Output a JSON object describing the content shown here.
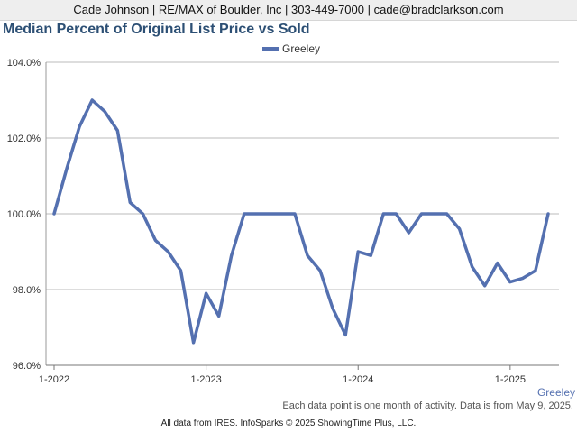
{
  "header": {
    "contact": "Cade Johnson | RE/MAX of Boulder, Inc | 303-449-7000 | cade@bradclarkson.com"
  },
  "colors": {
    "series": "#5470b0",
    "title": "#2c4f74",
    "grid": "#bbbbbb"
  },
  "chart_data": {
    "type": "line",
    "title": "Median Percent of Original List Price vs Sold",
    "xlabel": "",
    "ylabel": "",
    "ylim": [
      96,
      104
    ],
    "yticks": [
      96,
      98,
      100,
      102,
      104
    ],
    "ytick_labels": [
      "96.0%",
      "98.0%",
      "100.0%",
      "102.0%",
      "104.0%"
    ],
    "xticks": [
      "2022-01",
      "2023-01",
      "2024-01",
      "2025-01"
    ],
    "xtick_labels": [
      "1-2022",
      "1-2023",
      "1-2024",
      "1-2025"
    ],
    "xlim": [
      "2022-01",
      "2025-05"
    ],
    "grid": "horizontal",
    "legend": "top-center",
    "series_end_label": "Greeley",
    "series": [
      {
        "name": "Greeley",
        "x": [
          "2022-01",
          "2022-02",
          "2022-03",
          "2022-04",
          "2022-05",
          "2022-06",
          "2022-07",
          "2022-08",
          "2022-09",
          "2022-10",
          "2022-11",
          "2022-12",
          "2023-01",
          "2023-02",
          "2023-03",
          "2023-04",
          "2023-05",
          "2023-06",
          "2023-07",
          "2023-08",
          "2023-09",
          "2023-10",
          "2023-11",
          "2023-12",
          "2024-01",
          "2024-02",
          "2024-03",
          "2024-04",
          "2024-05",
          "2024-06",
          "2024-07",
          "2024-08",
          "2024-09",
          "2024-10",
          "2024-11",
          "2024-12",
          "2025-01",
          "2025-02",
          "2025-03",
          "2025-04"
        ],
        "values": [
          100.0,
          101.2,
          102.3,
          103.0,
          102.7,
          102.2,
          100.3,
          100.0,
          99.3,
          99.0,
          98.5,
          96.6,
          97.9,
          97.3,
          98.9,
          100.0,
          100.0,
          100.0,
          100.0,
          100.0,
          98.9,
          98.5,
          97.5,
          96.8,
          99.0,
          98.9,
          100.0,
          100.0,
          99.5,
          100.0,
          100.0,
          100.0,
          99.6,
          98.6,
          98.1,
          98.7,
          98.2,
          98.3,
          98.5,
          100.0
        ]
      }
    ],
    "footnote": "Each data point is one month of activity. Data is from May 9, 2025.",
    "credit": "All data from IRES. InfoSparks © 2025 ShowingTime Plus, LLC."
  }
}
